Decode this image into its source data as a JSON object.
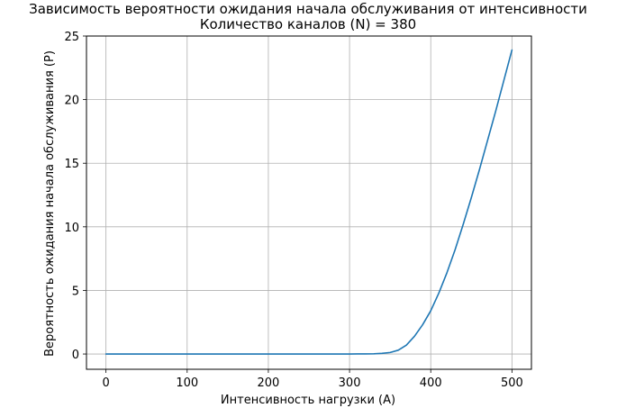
{
  "chart_data": {
    "type": "line",
    "title": "Зависимость вероятности ожидания начала обслуживания от интенсивности",
    "subtitle": "Количество каналов (N) = 380",
    "xlabel": "Интенсивность нагрузки (A)",
    "ylabel": "Вероятность ожидания начала обслуживания (P)",
    "xlim": [
      -24,
      524
    ],
    "ylim": [
      -1.2,
      25
    ],
    "xticks": [
      0,
      100,
      200,
      300,
      400,
      500
    ],
    "yticks": [
      0,
      5,
      10,
      15,
      20,
      25
    ],
    "grid": true,
    "line_color": "#1f77b4",
    "series": [
      {
        "x": [
          0,
          50,
          100,
          150,
          200,
          250,
          300,
          310,
          320,
          330,
          340,
          350,
          360,
          370,
          380,
          390,
          400,
          410,
          420,
          430,
          440,
          450,
          460,
          470,
          480,
          490,
          500
        ],
        "y": [
          0,
          0,
          0,
          0,
          0,
          0,
          0,
          0.005,
          0.01,
          0.02,
          0.05,
          0.12,
          0.3,
          0.7,
          1.4,
          2.3,
          3.4,
          4.8,
          6.4,
          8.2,
          10.2,
          12.3,
          14.5,
          16.8,
          19.1,
          21.5,
          23.9
        ]
      }
    ]
  }
}
